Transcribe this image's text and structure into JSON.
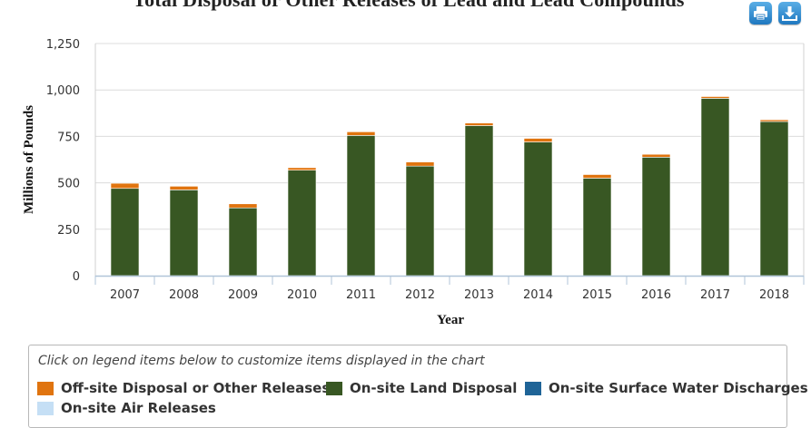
{
  "header": {
    "title": "Total Disposal or Other Releases of Lead and Lead Compounds",
    "print_icon": "print-icon",
    "download_icon": "download-icon"
  },
  "legend": {
    "hint": "Click on legend items below to customize items displayed in the chart",
    "items": [
      {
        "label": "Off-site Disposal or Other Releases",
        "color": "#e0740f"
      },
      {
        "label": "On-site Land Disposal",
        "color": "#385723"
      },
      {
        "label": "On-site Surface Water Discharges",
        "color": "#1f6497"
      },
      {
        "label": "On-site Air Releases",
        "color": "#c5dff5"
      }
    ]
  },
  "chart_data": {
    "type": "bar",
    "stacked": true,
    "title": "Total Disposal or Other Releases of Lead and Lead Compounds",
    "xlabel": "Year",
    "ylabel": "Millions of Pounds",
    "ylim": [
      0,
      1250
    ],
    "yticks": [
      0,
      250,
      500,
      750,
      "1,000",
      "1,250"
    ],
    "grid": true,
    "legend_position": "bottom",
    "categories": [
      "2007",
      "2008",
      "2009",
      "2010",
      "2011",
      "2012",
      "2013",
      "2014",
      "2015",
      "2016",
      "2017",
      "2018"
    ],
    "series": [
      {
        "name": "On-site Land Disposal",
        "color": "#385723",
        "values": [
          470,
          462,
          365,
          568,
          755,
          590,
          808,
          720,
          525,
          638,
          955,
          830
        ]
      },
      {
        "name": "Off-site Disposal or Other Releases",
        "color": "#e0740f",
        "values": [
          28,
          20,
          22,
          14,
          20,
          22,
          14,
          20,
          20,
          16,
          10,
          10
        ]
      },
      {
        "name": "On-site Surface Water Discharges",
        "color": "#1f6497",
        "values": [
          0,
          0,
          0,
          0,
          0,
          0,
          0,
          0,
          0,
          0,
          0,
          0
        ]
      },
      {
        "name": "On-site Air Releases",
        "color": "#c5dff5",
        "values": [
          1,
          1,
          1,
          1,
          1,
          1,
          1,
          1,
          1,
          1,
          1,
          1
        ]
      }
    ]
  }
}
